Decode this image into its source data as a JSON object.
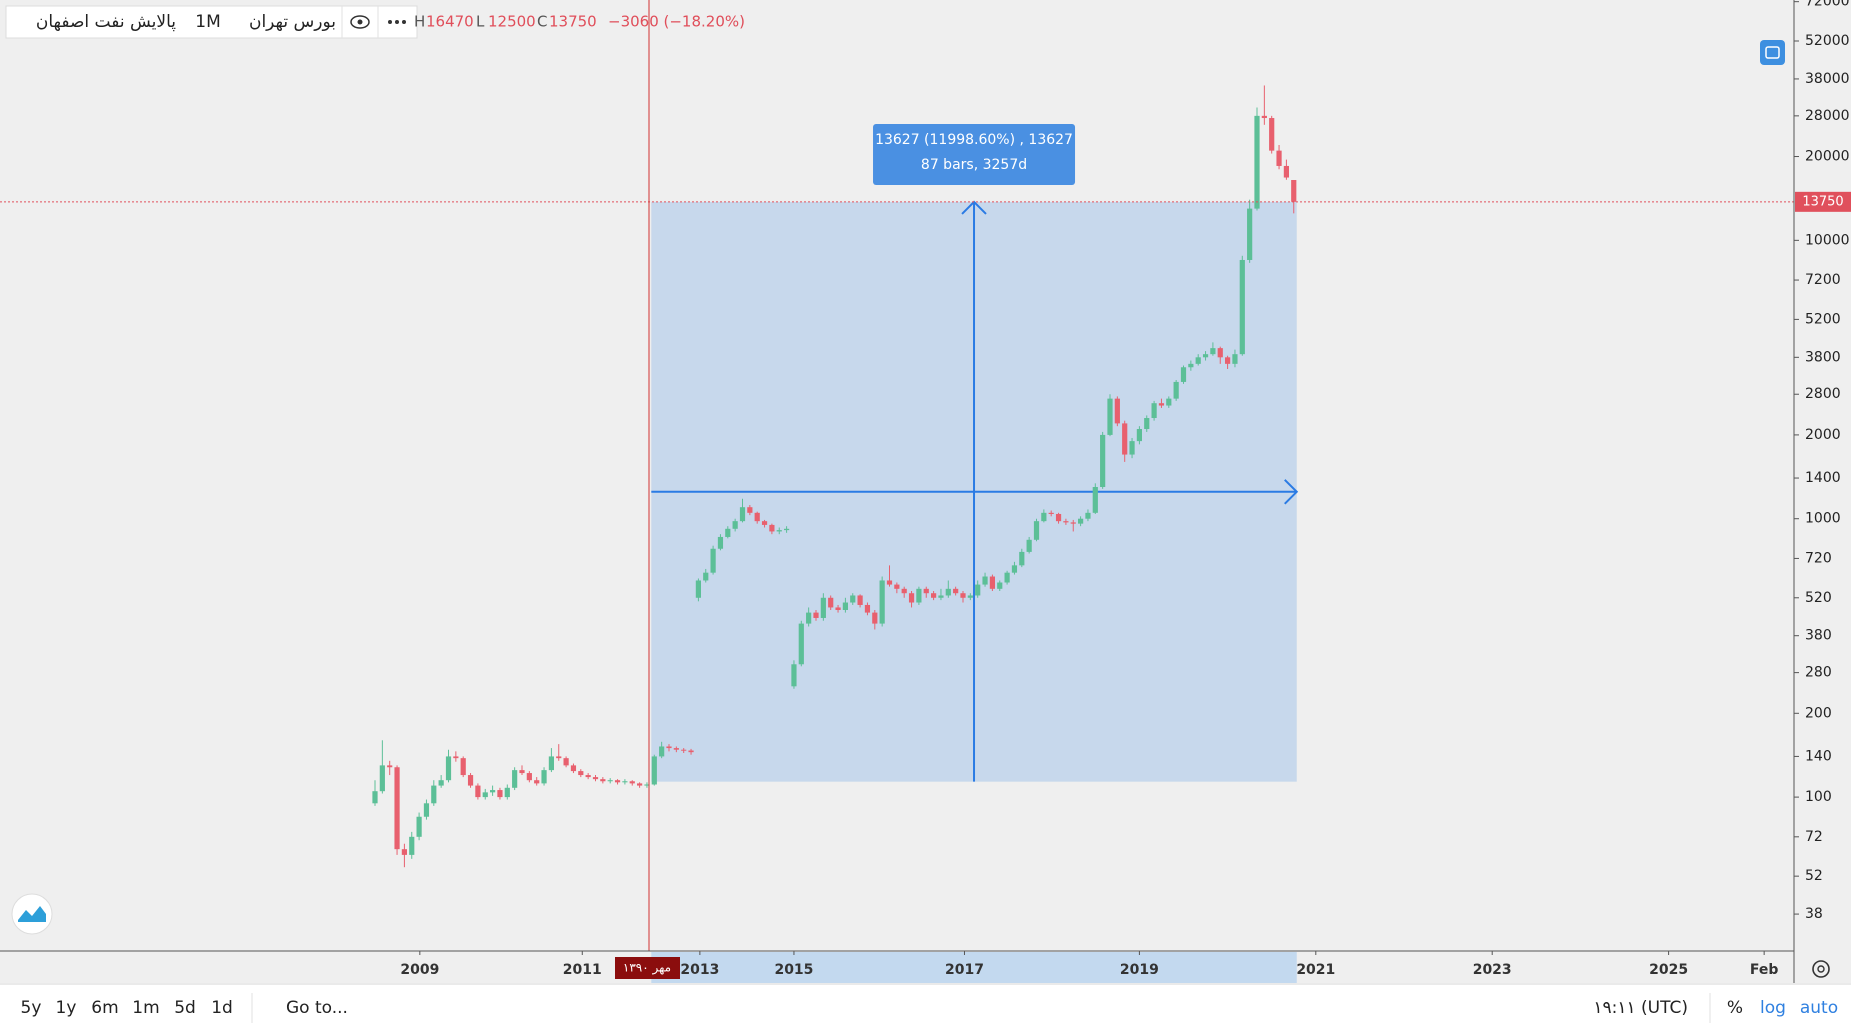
{
  "chart_data": {
    "type": "candlestick",
    "symbol": "پالایش نفت اصفهان",
    "interval": "1M",
    "exchange": "بورس تهران",
    "ohlc_labels": [
      "H",
      "L",
      "C"
    ],
    "ohlc_values": [
      16470,
      12500,
      13750
    ],
    "change_label": "−3060 (−18.20%)",
    "last_price": 13750,
    "up_color": "#5cbf97",
    "down_color": "#e8606e",
    "log": true,
    "ylim": [
      28,
      73000
    ],
    "yticks": [
      38,
      52,
      72,
      100,
      140,
      200,
      280,
      380,
      520,
      720,
      1000,
      1400,
      2000,
      2800,
      3800,
      5200,
      7200,
      10000,
      20000,
      28000,
      38000,
      52000,
      72000
    ],
    "xticks": [
      {
        "value": 6.1,
        "label": "2009"
      },
      {
        "value": 28.2,
        "label": "2011"
      },
      {
        "value": 44.2,
        "label": "2013"
      },
      {
        "value": 57,
        "label": "2015"
      },
      {
        "value": 80.2,
        "label": "2017"
      },
      {
        "value": 104,
        "label": "2019"
      },
      {
        "value": 128,
        "label": "2021"
      },
      {
        "value": 152,
        "label": "2023"
      },
      {
        "value": 176,
        "label": "2025"
      },
      {
        "value": 189,
        "label": "Feb"
      }
    ],
    "crosshair_label": "مهر ۱۳۹۰",
    "measure": {
      "start_bar": 38,
      "end_bar": 125,
      "start_price": 113.6,
      "end_price": 13740,
      "label_1": "13627 (11998.60%) , 13627",
      "label_2": "87 bars, 3257d"
    },
    "open": [
      95,
      105,
      130,
      128,
      65,
      62,
      72,
      85,
      95,
      110,
      115,
      140,
      138,
      120,
      110,
      100,
      104,
      106,
      100,
      108,
      125,
      122,
      115,
      112,
      125,
      140,
      138,
      130,
      124,
      120,
      118,
      116,
      114,
      115,
      113,
      114,
      112,
      110,
      111,
      140,
      152,
      150,
      148,
      147,
      520,
      600,
      640,
      780,
      860,
      920,
      980,
      1100,
      1050,
      980,
      950,
      900,
      910,
      250,
      300,
      420,
      460,
      440,
      520,
      480,
      470,
      500,
      530,
      490,
      460,
      420,
      600,
      580,
      560,
      540,
      500,
      560,
      540,
      520,
      530,
      560,
      540,
      520,
      530,
      580,
      620,
      560,
      590,
      640,
      680,
      760,
      840,
      980,
      1050,
      1040,
      980,
      970,
      960,
      1000,
      1050,
      1300,
      2000,
      2700,
      2200,
      1700,
      1900,
      2100,
      2300,
      2600,
      2550,
      2700,
      3100,
      3500,
      3600,
      3800,
      3900,
      4100,
      3800,
      3600,
      3900,
      8500,
      13000,
      28000,
      27500,
      21000,
      18500,
      16470
    ],
    "high": [
      115,
      160,
      135,
      130,
      68,
      75,
      88,
      98,
      115,
      120,
      148,
      146,
      140,
      122,
      112,
      107,
      110,
      108,
      111,
      128,
      130,
      124,
      118,
      128,
      150,
      155,
      140,
      132,
      126,
      122,
      120,
      118,
      117,
      116,
      116,
      115,
      113,
      113,
      142,
      158,
      155,
      152,
      150,
      149,
      610,
      660,
      800,
      880,
      940,
      1000,
      1180,
      1120,
      1060,
      990,
      960,
      930,
      940,
      310,
      430,
      480,
      470,
      540,
      530,
      490,
      520,
      540,
      535,
      500,
      470,
      620,
      680,
      590,
      570,
      550,
      570,
      570,
      550,
      560,
      600,
      570,
      550,
      540,
      600,
      640,
      630,
      600,
      650,
      700,
      780,
      860,
      1000,
      1080,
      1070,
      1050,
      1000,
      990,
      1020,
      1080,
      1340,
      2050,
      2800,
      2750,
      2250,
      1950,
      2150,
      2350,
      2650,
      2700,
      2750,
      3150,
      3550,
      3700,
      3900,
      4000,
      4300,
      4150,
      3850,
      4050,
      8800,
      14000,
      30000,
      36000,
      28000,
      22000,
      19500,
      16470
    ],
    "low": [
      93,
      103,
      120,
      62,
      56,
      60,
      70,
      83,
      93,
      108,
      113,
      134,
      118,
      108,
      98,
      98,
      101,
      98,
      98,
      106,
      120,
      113,
      110,
      110,
      123,
      135,
      128,
      122,
      118,
      116,
      114,
      112,
      112,
      111,
      111,
      110,
      108,
      108,
      110,
      138,
      146,
      145,
      144,
      142,
      505,
      590,
      630,
      770,
      850,
      900,
      970,
      1030,
      960,
      930,
      880,
      880,
      890,
      245,
      295,
      410,
      430,
      430,
      470,
      460,
      460,
      490,
      480,
      450,
      400,
      410,
      570,
      540,
      520,
      480,
      490,
      520,
      510,
      510,
      520,
      530,
      500,
      510,
      520,
      570,
      550,
      550,
      580,
      630,
      670,
      750,
      830,
      970,
      1020,
      960,
      950,
      900,
      940,
      980,
      1040,
      1280,
      1980,
      2150,
      1600,
      1650,
      1850,
      2050,
      2250,
      2500,
      2500,
      2650,
      3050,
      3400,
      3550,
      3700,
      3850,
      3600,
      3450,
      3500,
      3850,
      8300,
      12800,
      26000,
      20500,
      18000,
      16500,
      12500
    ],
    "close": [
      105,
      130,
      128,
      65,
      62,
      72,
      85,
      95,
      110,
      115,
      140,
      138,
      120,
      110,
      100,
      104,
      106,
      100,
      108,
      125,
      122,
      115,
      112,
      125,
      140,
      138,
      130,
      124,
      120,
      118,
      116,
      114,
      115,
      113,
      114,
      112,
      110,
      111,
      140,
      152,
      150,
      148,
      147,
      145,
      600,
      640,
      780,
      860,
      920,
      980,
      1100,
      1050,
      980,
      950,
      900,
      910,
      920,
      300,
      420,
      460,
      440,
      520,
      480,
      470,
      500,
      530,
      490,
      460,
      420,
      600,
      580,
      560,
      540,
      500,
      560,
      540,
      520,
      530,
      560,
      540,
      520,
      530,
      580,
      620,
      560,
      590,
      640,
      680,
      760,
      840,
      980,
      1050,
      1040,
      980,
      970,
      960,
      1000,
      1050,
      1300,
      2000,
      2700,
      2200,
      1700,
      1900,
      2100,
      2300,
      2600,
      2550,
      2700,
      3100,
      3500,
      3600,
      3800,
      3900,
      4100,
      3800,
      3600,
      3900,
      8500,
      13000,
      28000,
      27500,
      21000,
      18500,
      16810,
      13750
    ]
  },
  "toolbar": {
    "ranges": [
      "5y",
      "1y",
      "6m",
      "1m",
      "5d",
      "1d"
    ],
    "goto": "Go to...",
    "time": "۱۹:۱۱ (UTC)",
    "percent": "%",
    "log": "log",
    "auto": "auto"
  }
}
